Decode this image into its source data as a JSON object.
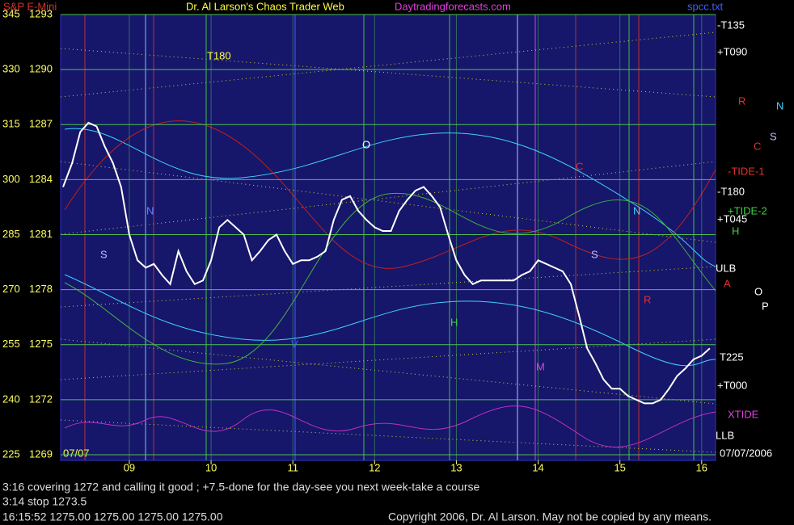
{
  "chart_data": {
    "type": "line",
    "title": "S&P E-Mini",
    "header": {
      "site": "Dr. Al Larson's Chaos Trader Web",
      "url": "Daytradingforecasts.com",
      "file": "spcc.txt"
    },
    "date_label": "07/07",
    "x": [
      8.19,
      8.3,
      8.4,
      8.5,
      8.6,
      8.7,
      8.8,
      8.9,
      9.0,
      9.1,
      9.2,
      9.3,
      9.4,
      9.5,
      9.6,
      9.7,
      9.8,
      9.9,
      10.0,
      10.1,
      10.2,
      10.3,
      10.4,
      10.5,
      10.6,
      10.7,
      10.8,
      10.9,
      11.0,
      11.1,
      11.2,
      11.3,
      11.4,
      11.5,
      11.6,
      11.7,
      11.8,
      11.9,
      12.0,
      12.1,
      12.2,
      12.3,
      12.4,
      12.5,
      12.6,
      12.7,
      12.8,
      12.9,
      13.0,
      13.1,
      13.2,
      13.3,
      13.4,
      13.5,
      13.6,
      13.7,
      13.8,
      13.9,
      14.0,
      14.1,
      14.2,
      14.3,
      14.4,
      14.5,
      14.6,
      14.7,
      14.8,
      14.9,
      15.0,
      15.1,
      15.2,
      15.3,
      15.4,
      15.5,
      15.6,
      15.7,
      15.8,
      15.9,
      16.0,
      16.1
    ],
    "series": [
      {
        "name": "S&P E-Mini",
        "color": "#ffffff",
        "values": [
          1283.6,
          1284.9,
          1286.6,
          1287.1,
          1286.9,
          1285.8,
          1284.9,
          1283.6,
          1281.0,
          1279.6,
          1279.2,
          1279.4,
          1278.8,
          1278.3,
          1280.1,
          1279.0,
          1278.3,
          1278.5,
          1279.6,
          1281.4,
          1281.8,
          1281.4,
          1281.0,
          1279.6,
          1280.1,
          1280.7,
          1281.0,
          1280.1,
          1279.4,
          1279.6,
          1279.6,
          1279.8,
          1280.1,
          1281.8,
          1282.9,
          1283.1,
          1282.3,
          1281.8,
          1281.4,
          1281.2,
          1281.2,
          1282.3,
          1282.9,
          1283.4,
          1283.6,
          1283.1,
          1282.5,
          1281.0,
          1279.6,
          1278.8,
          1278.3,
          1278.5,
          1278.5,
          1278.5,
          1278.5,
          1278.5,
          1278.8,
          1279.0,
          1279.6,
          1279.4,
          1279.2,
          1279.0,
          1278.3,
          1276.6,
          1274.8,
          1274.0,
          1273.1,
          1272.6,
          1272.6,
          1272.2,
          1272.0,
          1271.8,
          1271.8,
          1272.0,
          1272.6,
          1273.3,
          1273.7,
          1274.2,
          1274.4,
          1274.8
        ]
      }
    ],
    "xlim": [
      8.16,
      16.17
    ],
    "xticks": [
      {
        "value": 9,
        "label": "09"
      },
      10,
      11,
      12,
      13,
      14,
      15,
      16
    ],
    "ylim": [
      1269,
      1293
    ],
    "yticks": [
      1269,
      1272,
      1275,
      1278,
      1281,
      1284,
      1287,
      1290,
      1293
    ],
    "y2lim": [
      225,
      345
    ],
    "y2ticks": [
      225,
      240,
      255,
      270,
      285,
      300,
      315,
      330,
      345
    ],
    "grid": true,
    "annotations": {
      "right": [
        "-T135",
        "+T090",
        "-TIDE-1",
        "-T180",
        "+T045",
        "+TIDE-2",
        "ULB",
        "T225",
        "+T000",
        "XTIDE",
        "LLB",
        "07/07/2006"
      ],
      "right_letters": [
        "R",
        "N",
        "S",
        "C",
        "H",
        "A",
        "O",
        "P"
      ],
      "inner": [
        "T180",
        "S",
        "N",
        "O",
        "H",
        "M",
        "C",
        "N",
        "S",
        "R",
        "V"
      ]
    },
    "footer": {
      "lines": [
        "3:16 covering 1272 and calling it good ; +7.5-done for the day-see you next week-take a course",
        "3:14 stop 1273.5",
        "16:15:52  1275.00 1275.00 1275.00 1275.00"
      ],
      "copyright": "Copyright 2006, Dr. Al Larson. May not be copied by any means."
    }
  }
}
